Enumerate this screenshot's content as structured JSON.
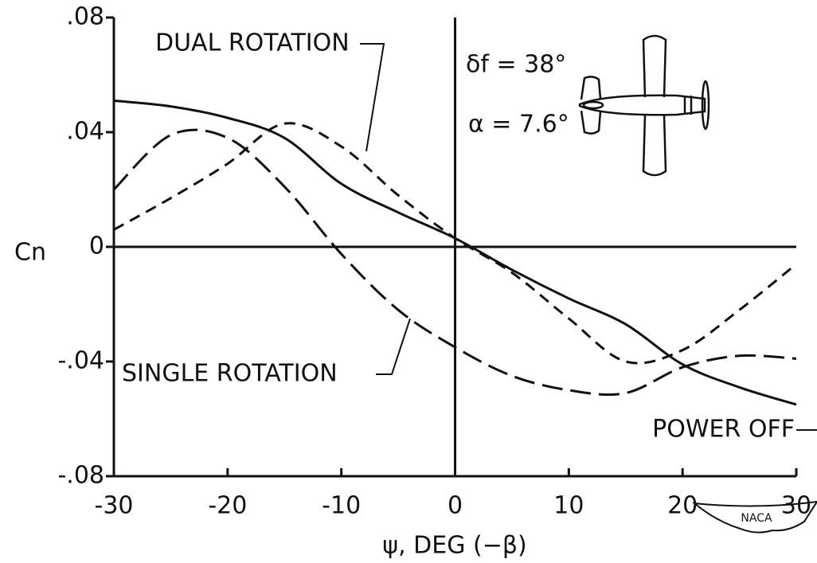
{
  "chart_data": {
    "type": "line",
    "x_label": "ψ, DEG (−β)",
    "y_label": "Cn",
    "annotations": [
      "δf = 38°",
      "α = 7.6°"
    ],
    "logo": "NACA",
    "x": [
      -30,
      -25,
      -20,
      -15,
      -10,
      -5,
      0,
      5,
      10,
      15,
      20,
      25,
      30
    ],
    "series": [
      {
        "name": "POWER OFF",
        "color": "#111111",
        "dash": "none",
        "values": [
          0.051,
          0.049,
          0.045,
          0.038,
          0.022,
          0.012,
          0.003,
          -0.008,
          -0.018,
          -0.027,
          -0.041,
          -0.049,
          -0.055
        ]
      },
      {
        "name": "DUAL ROTATION",
        "color": "#111111",
        "dash": "14 9",
        "values": [
          0.006,
          0.017,
          0.029,
          0.043,
          0.035,
          0.018,
          0.003,
          -0.009,
          -0.025,
          -0.04,
          -0.036,
          -0.022,
          -0.006
        ]
      },
      {
        "name": "SINGLE ROTATION",
        "color": "#111111",
        "dash": "26 10",
        "values": [
          0.02,
          0.039,
          0.038,
          0.021,
          -0.0025,
          -0.022,
          -0.035,
          -0.045,
          -0.05,
          -0.051,
          -0.042,
          -0.038,
          -0.039
        ]
      }
    ],
    "xlim": [
      -30,
      30
    ],
    "ylim": [
      -0.08,
      0.08
    ],
    "xticks": [
      -30,
      -20,
      -10,
      0,
      10,
      20,
      30
    ],
    "yticks": [
      {
        "value": -0.08,
        "label": "-.08"
      },
      {
        "value": -0.04,
        "label": "-.04"
      },
      0,
      {
        "value": 0.04,
        "label": ".04"
      },
      {
        "value": 0.08,
        "label": ".08"
      }
    ]
  }
}
